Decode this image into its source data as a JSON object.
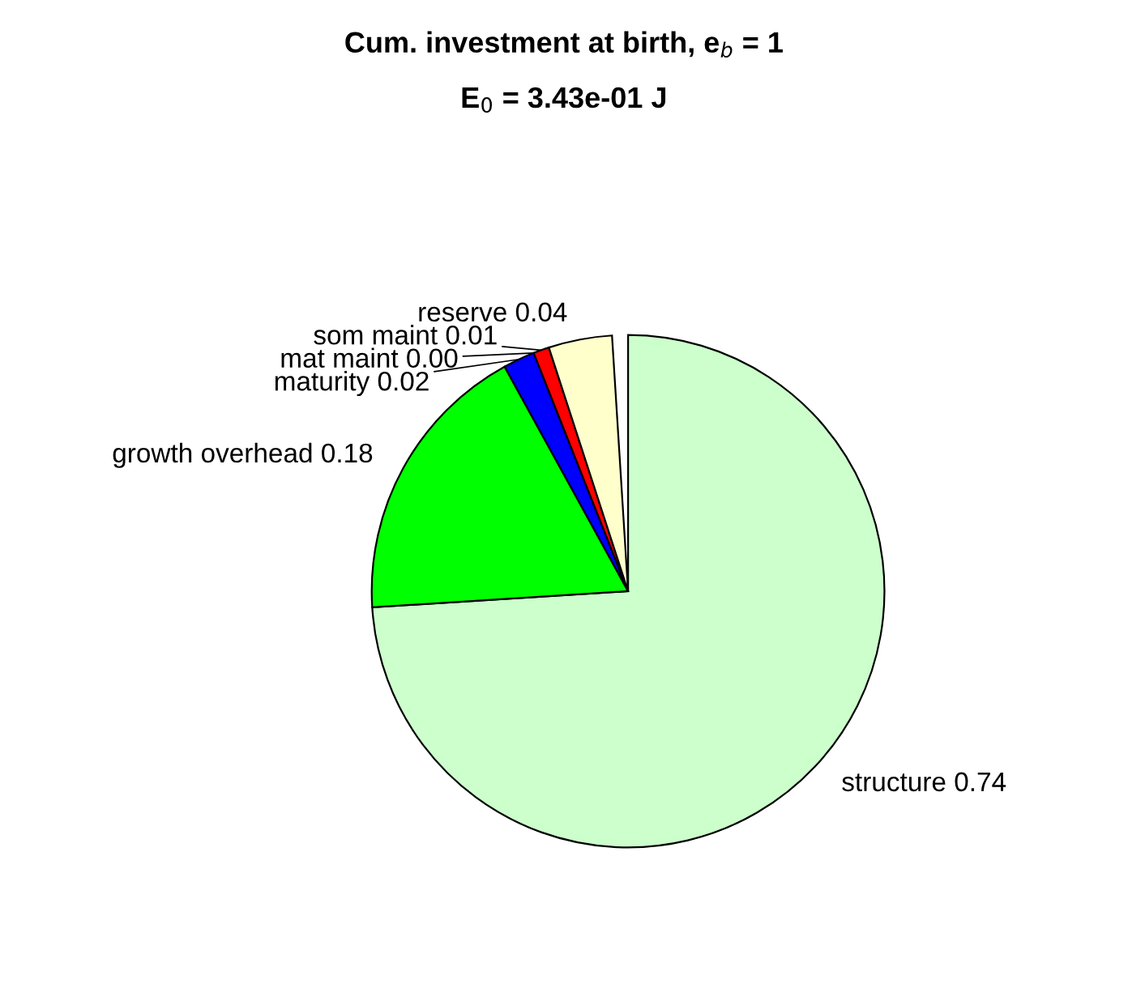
{
  "chart_data": {
    "type": "pie",
    "title": "Cum. investment at birth, e$_{b}$ = 1",
    "subtitle": "E$_{0}$ = 3.43e-01 J",
    "categories": [
      "structure",
      "growth overhead",
      "maturity",
      "mat maint",
      "som maint",
      "reserve"
    ],
    "values": [
      0.74,
      0.18,
      0.02,
      0.0,
      0.01,
      0.04
    ],
    "value_labels": [
      "0.74",
      "0.18",
      "0.02",
      "0.00",
      "0.01",
      "0.04"
    ],
    "colors": [
      "#ccffcc",
      "#00ff00",
      "#0000ff",
      "#000000",
      "#ff0000",
      "#ffffcc"
    ]
  }
}
